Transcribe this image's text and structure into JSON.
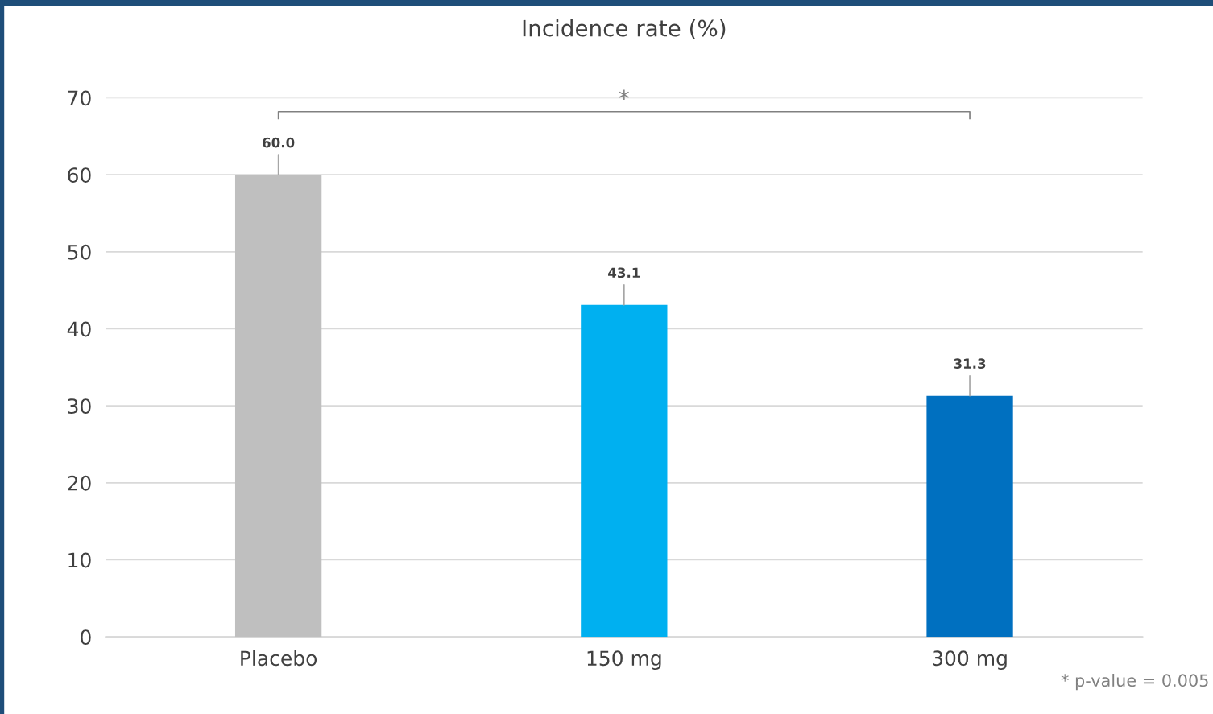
{
  "chart_data": {
    "type": "bar",
    "title": "Incidence rate (%)",
    "categories": [
      "Placebo",
      "150 mg",
      "300 mg"
    ],
    "values": [
      60.0,
      43.1,
      31.3
    ],
    "colors": [
      "#bfbfbf",
      "#00b0f0",
      "#0070c0"
    ],
    "value_labels": [
      "60.0",
      "43.1",
      "31.3"
    ],
    "ylim": [
      0,
      70
    ],
    "yticks": [
      0,
      10,
      20,
      30,
      40,
      50,
      60,
      70
    ],
    "grid": "y",
    "annotations": [
      "*",
      "* p-value = 0.005"
    ]
  }
}
